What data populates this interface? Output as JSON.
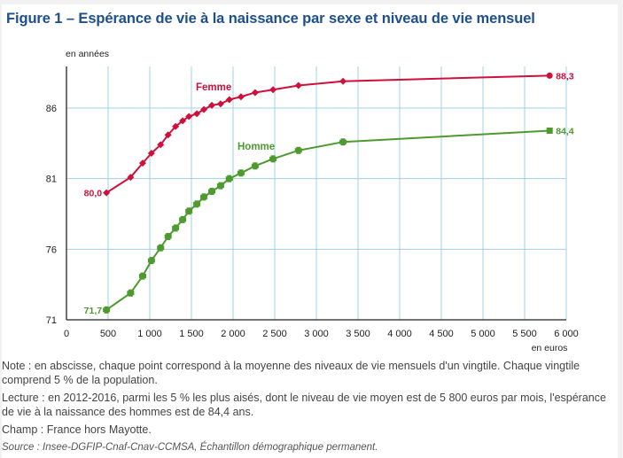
{
  "page": {
    "title": "Figure 1 – Espérance de vie à la naissance par sexe et niveau de vie mensuel"
  },
  "notes": {
    "note": "Note : en abscisse, chaque point correspond à la moyenne des niveaux de vie mensuels d'un vingtile. Chaque vingtile comprend 5 % de la population.",
    "lecture": "Lecture : en 2012-2016, parmi les 5 % les plus aisés, dont le niveau de vie moyen est de 5 800 euros par mois, l'espérance de vie à la naissance des hommes est de 84,4 ans.",
    "champ": "Champ : France hors Mayotte.",
    "source": "Source : Insee-DGFIP-Cnaf-Cnav-CCMSA, Échantillon démographique permanent."
  },
  "chart_data": {
    "type": "line",
    "title": "Figure 1 – Espérance de vie à la naissance par sexe et niveau de vie mensuel",
    "xlabel": "en euros",
    "ylabel": "en années",
    "xlim": [
      0,
      6000
    ],
    "ylim": [
      71,
      89
    ],
    "grid": true,
    "x_ticks": [
      0,
      500,
      1000,
      1500,
      2000,
      2500,
      3000,
      3500,
      4000,
      4500,
      5000,
      5500,
      6000
    ],
    "x_tick_labels": [
      "0",
      "500",
      "1 000",
      "1 500",
      "2 000",
      "2 500",
      "3 000",
      "3 500",
      "4 000",
      "4 500",
      "5 000",
      "5 500",
      "6 000"
    ],
    "y_ticks": [
      71,
      76,
      81,
      86
    ],
    "y_tick_labels": [
      "71",
      "76",
      "81",
      "86"
    ],
    "x": [
      480,
      770,
      915,
      1020,
      1130,
      1220,
      1310,
      1395,
      1470,
      1565,
      1650,
      1745,
      1850,
      1955,
      2095,
      2265,
      2480,
      2785,
      3320,
      5800
    ],
    "series": [
      {
        "name": "Femme",
        "color": "#d0103a",
        "marker": "diamond",
        "values": [
          80.0,
          81.1,
          82.1,
          82.8,
          83.4,
          84.1,
          84.7,
          85.1,
          85.4,
          85.6,
          85.9,
          86.2,
          86.3,
          86.6,
          86.8,
          87.1,
          87.3,
          87.6,
          87.9,
          88.3
        ],
        "first_label": "80,0",
        "last_label": "88,3"
      },
      {
        "name": "Homme",
        "color": "#4e9a2e",
        "marker": "square",
        "values": [
          71.7,
          72.9,
          74.1,
          75.2,
          76.1,
          76.9,
          77.5,
          78.1,
          78.7,
          79.2,
          79.7,
          80.1,
          80.5,
          81.0,
          81.4,
          81.9,
          82.4,
          83.0,
          83.6,
          84.4
        ],
        "first_label": "71,7",
        "last_label": "84,4"
      }
    ]
  }
}
